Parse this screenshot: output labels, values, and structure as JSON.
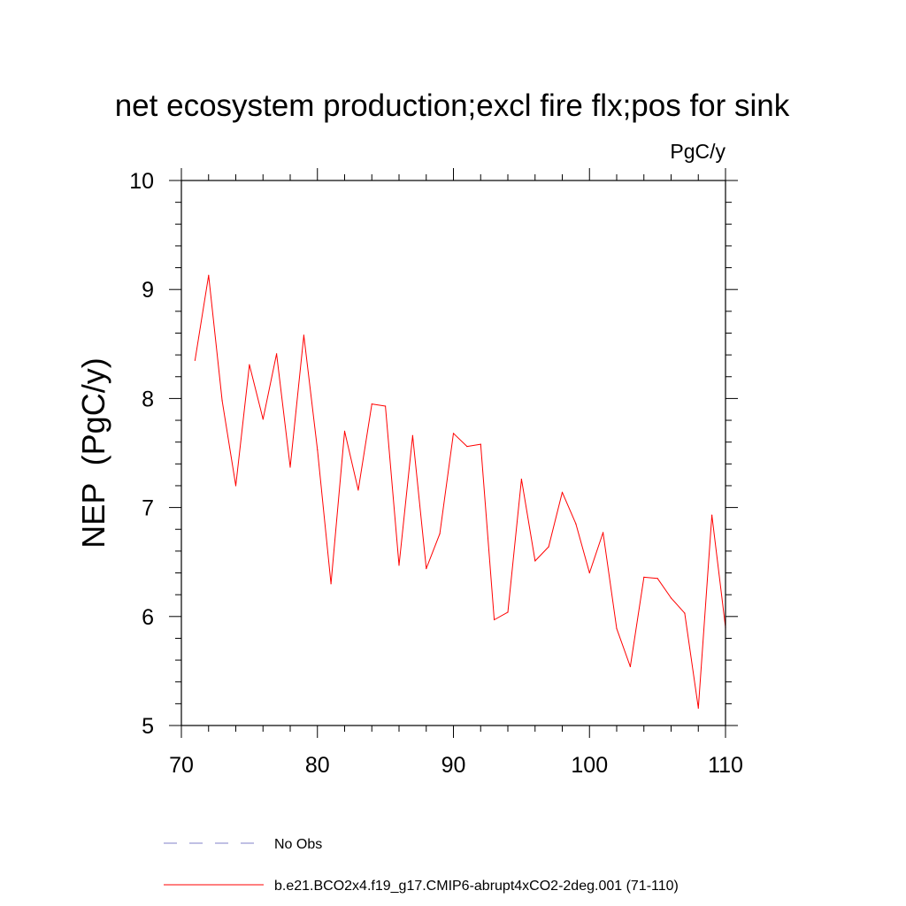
{
  "chart_data": {
    "type": "line",
    "title": "net ecosystem production;excl fire flx;pos for sink",
    "units_label": "PgC/y",
    "ylabel": "NEP  (PgC/y)",
    "xlabel": "",
    "xlim": [
      70,
      110
    ],
    "ylim": [
      5,
      10
    ],
    "xticks": [
      70,
      80,
      90,
      100,
      110
    ],
    "yticks": [
      5,
      6,
      7,
      8,
      9,
      10
    ],
    "xtick_labels": [
      "70",
      "80",
      "90",
      "100",
      "110"
    ],
    "ytick_labels": [
      "5",
      "6",
      "7",
      "8",
      "9",
      "10"
    ],
    "x_minor_step": 2,
    "y_minor_step": 0.2,
    "grid": false,
    "legend_position": "bottom",
    "series": [
      {
        "name": "b.e21.BCO2x4.f19_g17.CMIP6-abrupt4xCO2-2deg.001 (71-110)",
        "color": "#ff0000",
        "style": "solid",
        "x": [
          71,
          72,
          73,
          74,
          75,
          76,
          77,
          78,
          79,
          80,
          81,
          82,
          83,
          84,
          85,
          86,
          87,
          88,
          89,
          90,
          91,
          92,
          93,
          94,
          95,
          96,
          97,
          98,
          99,
          100,
          101,
          102,
          103,
          104,
          105,
          106,
          107,
          108,
          109,
          110
        ],
        "values": [
          8.35,
          9.13,
          7.98,
          7.2,
          8.31,
          7.81,
          8.41,
          7.37,
          8.58,
          7.53,
          6.3,
          7.7,
          7.16,
          7.95,
          7.93,
          6.47,
          7.66,
          6.44,
          6.76,
          7.68,
          7.56,
          7.58,
          5.97,
          6.04,
          7.26,
          6.51,
          6.64,
          7.14,
          6.85,
          6.4,
          6.77,
          5.89,
          5.54,
          6.36,
          6.35,
          6.17,
          6.03,
          5.16,
          6.93,
          5.9
        ]
      }
    ],
    "legend": [
      {
        "label": "No Obs",
        "color": "#8080c8",
        "style": "dashed"
      },
      {
        "label": "b.e21.BCO2x4.f19_g17.CMIP6-abrupt4xCO2-2deg.001 (71-110)",
        "color": "#ff0000",
        "style": "solid"
      }
    ]
  }
}
